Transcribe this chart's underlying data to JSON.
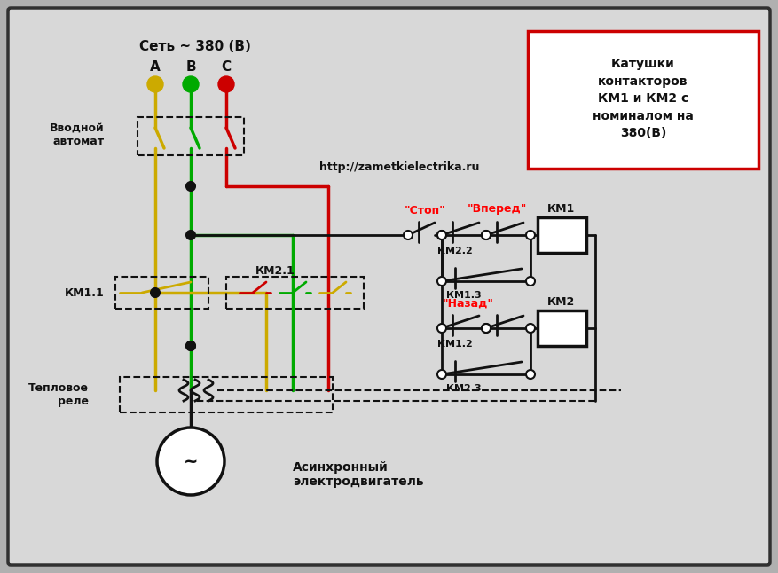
{
  "bg_color": "#b0b0b0",
  "inner_bg": "#d8d8d8",
  "border_color": "#303030",
  "text_url": "http://zametkielectrika.ru",
  "legend_text": "Катушки\nконтакторов\nКМ1 и КМ2 с\nноминалом на\n380(В)",
  "legend_border": "#cc0000",
  "color_A": "#ccaa00",
  "color_B": "#00aa00",
  "color_C": "#cc0000",
  "color_black": "#111111",
  "label_A": "А",
  "label_B": "В",
  "label_C": "С",
  "label_net": "Сеть ~ 380 (В)",
  "label_vvod": "Вводной\nавтомат",
  "label_km11": "КМ1.1",
  "label_km21": "КМ2.1",
  "label_teplo": "Тепловое\nреле",
  "label_async": "Асинхронный\nэлектродвигатель",
  "label_stop": "\"Стоп\"",
  "label_vpered": "\"Вперед\"",
  "label_nazad": "\"Назад\"",
  "label_km22": "КМ2.2",
  "label_km13": "КМ1.3",
  "label_km12": "КМ1.2",
  "label_km23": "КМ2.3",
  "label_km1": "КМ1",
  "label_km2": "КМ2"
}
